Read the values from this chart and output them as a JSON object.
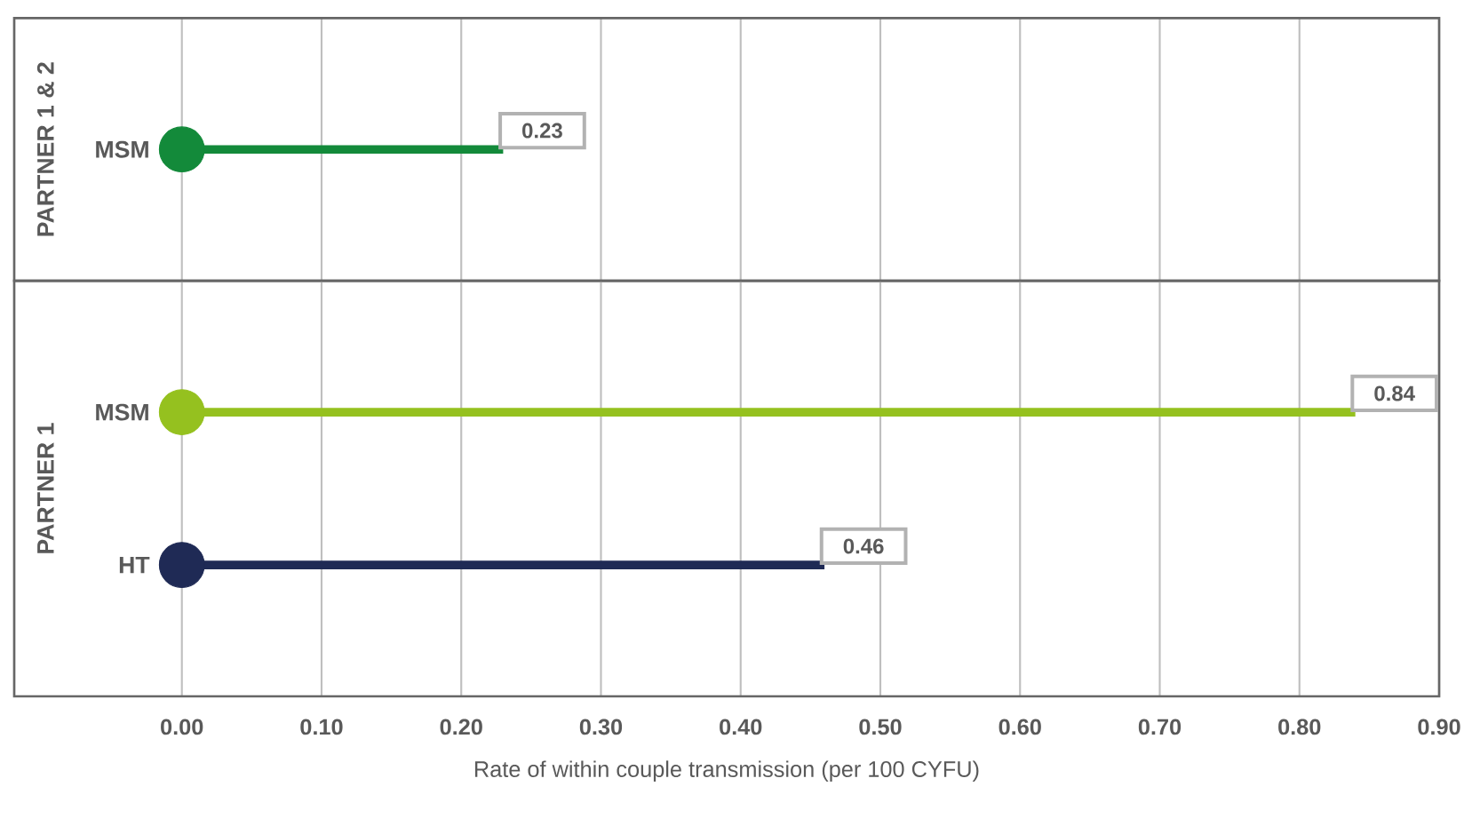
{
  "chart_data": [
    {
      "type": "bar",
      "orientation": "horizontal",
      "ylabel": "PARTNER 1 & 2",
      "categories": [
        "MSM"
      ],
      "xlim": [
        -0.12,
        0.9
      ],
      "xticks": [
        0.0,
        0.1,
        0.2,
        0.3,
        0.4,
        0.5,
        0.6,
        0.7,
        0.8,
        0.9
      ],
      "grid": "x",
      "tick_labels": "y",
      "series": [
        {
          "values": [
            0.23
          ],
          "colors": [
            "#138a3a"
          ],
          "value_labels": [
            "0.23"
          ]
        },
        {
          "type": "scatter",
          "values": [
            0
          ],
          "colors": [
            "#138a3a"
          ],
          "marker": "circle"
        }
      ]
    },
    {
      "type": "bar",
      "orientation": "horizontal",
      "ylabel": "PARTNER 1",
      "xlabel": "Rate of within couple transmission (per 100 CYFU)",
      "categories": [
        "MSM",
        "HT"
      ],
      "xlim": [
        -0.12,
        0.9
      ],
      "xticks": [
        {
          "value": 0.0,
          "label": "0.00"
        },
        {
          "value": 0.1,
          "label": "0.10"
        },
        {
          "value": 0.2,
          "label": "0.20"
        },
        {
          "value": 0.3,
          "label": "0.30"
        },
        {
          "value": 0.4,
          "label": "0.40"
        },
        {
          "value": 0.5,
          "label": "0.50"
        },
        {
          "value": 0.6,
          "label": "0.60"
        },
        {
          "value": 0.7,
          "label": "0.70"
        },
        {
          "value": 0.8,
          "label": "0.80"
        },
        {
          "value": 0.9,
          "label": "0.90"
        }
      ],
      "grid": "x",
      "series": [
        {
          "values": [
            0.84,
            0.46
          ],
          "colors": [
            "#95c11f",
            "#1f2a55"
          ],
          "value_labels": [
            "0.84",
            "0.46"
          ]
        },
        {
          "type": "scatter",
          "values": [
            0,
            0
          ],
          "colors": [
            "#95c11f",
            "#1f2a55"
          ],
          "marker": "circle"
        }
      ]
    }
  ]
}
